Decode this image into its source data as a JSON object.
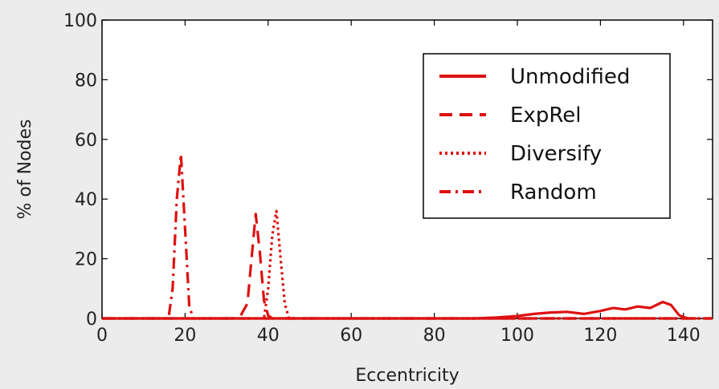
{
  "chart_data": {
    "type": "line",
    "xlabel": "Eccentricity",
    "ylabel": "% of Nodes",
    "xlim": [
      0,
      147
    ],
    "ylim": [
      0,
      100
    ],
    "xticks": [
      0,
      20,
      40,
      60,
      80,
      100,
      120,
      140
    ],
    "yticks": [
      0,
      20,
      40,
      60,
      80,
      100
    ],
    "grid": false,
    "legend_position": "top-right",
    "line_color": "#dd1111",
    "series": [
      {
        "name": "Unmodified",
        "style": "solid",
        "x": [
          0,
          90,
          95,
          100,
          104,
          108,
          112,
          116,
          120,
          123,
          126,
          129,
          132,
          135,
          137,
          139,
          141
        ],
        "y": [
          0,
          0,
          0.3,
          0.8,
          1.5,
          2,
          2.2,
          1.5,
          2.5,
          3.5,
          3,
          4,
          3.5,
          5.5,
          4.5,
          1,
          0
        ]
      },
      {
        "name": "ExpRel",
        "style": "dashed",
        "x": [
          0,
          33,
          35,
          36,
          37,
          38,
          39,
          40,
          41,
          147
        ],
        "y": [
          0,
          0,
          5,
          20,
          35,
          22,
          6,
          1,
          0,
          0
        ]
      },
      {
        "name": "Diversify",
        "style": "dotted",
        "x": [
          0,
          39,
          40,
          41,
          42,
          43,
          44,
          45,
          147
        ],
        "y": [
          0,
          0,
          10,
          28,
          36,
          20,
          5,
          0,
          0
        ]
      },
      {
        "name": "Random",
        "style": "dashdot",
        "x": [
          0,
          16,
          17,
          18,
          19,
          20,
          21,
          22,
          147
        ],
        "y": [
          0,
          0,
          10,
          40,
          55,
          30,
          4,
          0,
          0
        ]
      }
    ]
  }
}
